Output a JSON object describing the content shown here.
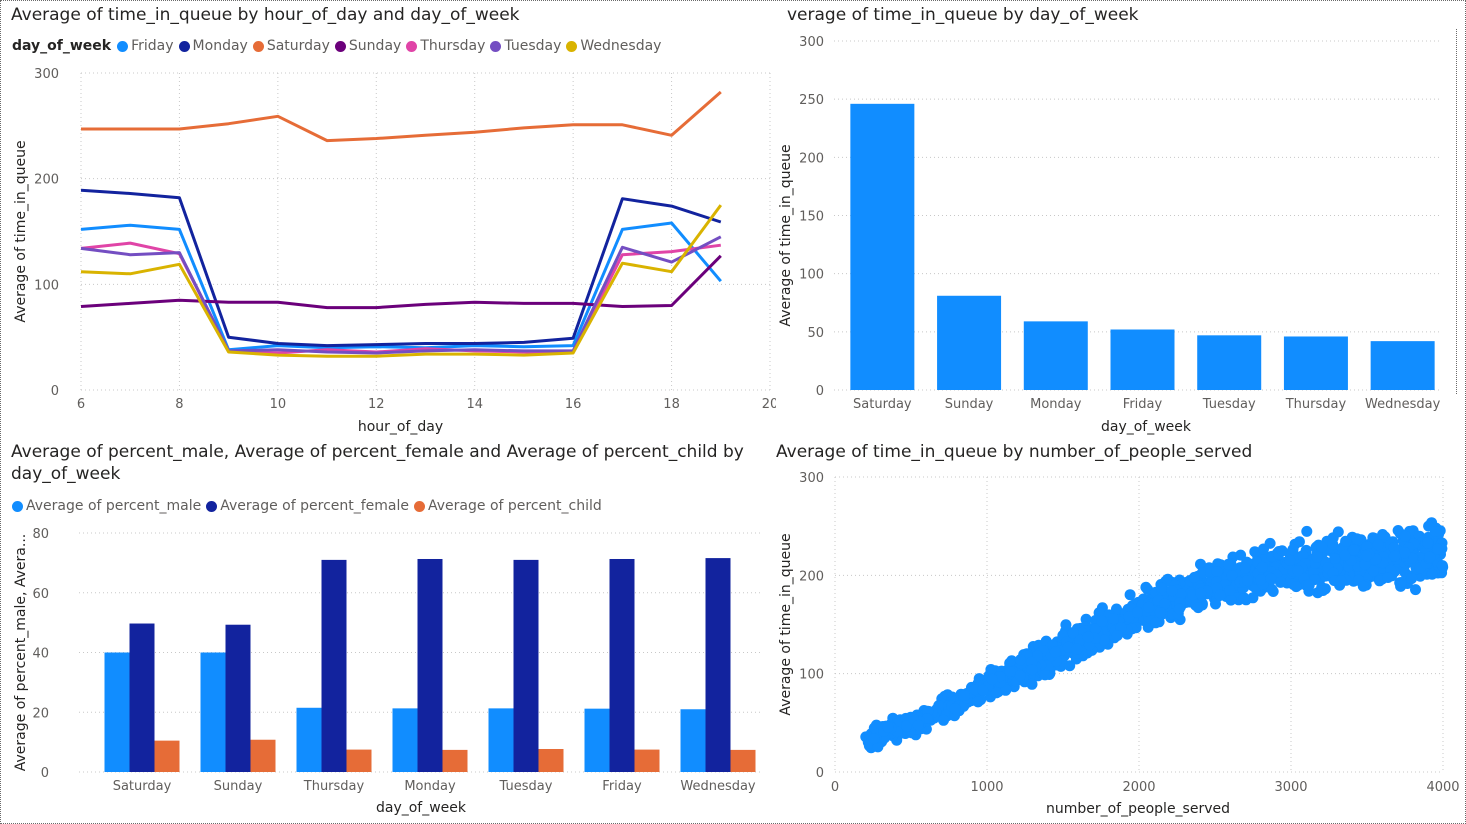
{
  "chart_data": [
    {
      "type": "line",
      "title": "Average of time_in_queue by hour_of_day and day_of_week",
      "xlabel": "hour_of_day",
      "ylabel": "Average of time_in_queue",
      "legend_title": "day_of_week",
      "legend_position": "top-left",
      "xlim": [
        6,
        20
      ],
      "ylim": [
        0,
        300
      ],
      "xticks": [
        6,
        8,
        10,
        12,
        14,
        16,
        18,
        20
      ],
      "yticks": [
        0,
        100,
        200,
        300
      ],
      "grid": true,
      "x": [
        6,
        7,
        8,
        9,
        10,
        11,
        12,
        13,
        14,
        15,
        16,
        17,
        18,
        19
      ],
      "series": [
        {
          "name": "Friday",
          "color": "#118DFF",
          "values": [
            152,
            156,
            152,
            38,
            42,
            40,
            41,
            40,
            42,
            41,
            42,
            152,
            158,
            103
          ]
        },
        {
          "name": "Monday",
          "color": "#12239E",
          "values": [
            189,
            186,
            182,
            50,
            44,
            42,
            43,
            44,
            44,
            45,
            49,
            181,
            174,
            159
          ]
        },
        {
          "name": "Saturday",
          "color": "#E66C37",
          "values": [
            247,
            247,
            247,
            252,
            259,
            236,
            238,
            241,
            244,
            248,
            251,
            251,
            241,
            282
          ]
        },
        {
          "name": "Sunday",
          "color": "#6B007B",
          "values": [
            79,
            82,
            85,
            83,
            83,
            78,
            78,
            81,
            83,
            82,
            82,
            79,
            80,
            127
          ]
        },
        {
          "name": "Thursday",
          "color": "#E044A7",
          "values": [
            134,
            139,
            129,
            37,
            35,
            38,
            36,
            39,
            37,
            36,
            36,
            128,
            131,
            137
          ]
        },
        {
          "name": "Tuesday",
          "color": "#744EC2",
          "values": [
            134,
            128,
            130,
            37,
            38,
            36,
            35,
            37,
            38,
            37,
            37,
            135,
            121,
            145
          ]
        },
        {
          "name": "Wednesday",
          "color": "#D9B300",
          "values": [
            112,
            110,
            119,
            36,
            33,
            32,
            32,
            34,
            34,
            33,
            35,
            120,
            112,
            175
          ]
        }
      ]
    },
    {
      "type": "bar",
      "title": "verage of time_in_queue by day_of_week",
      "xlabel": "day_of_week",
      "ylabel": "Average of time_in_queue",
      "ylim": [
        0,
        300
      ],
      "yticks": [
        0,
        50,
        100,
        150,
        200,
        250,
        300
      ],
      "grid": true,
      "color": "#118DFF",
      "categories": [
        "Saturday",
        "Sunday",
        "Monday",
        "Friday",
        "Tuesday",
        "Thursday",
        "Wednesday"
      ],
      "values": [
        246,
        81,
        59,
        52,
        47,
        46,
        42
      ]
    },
    {
      "type": "bar",
      "title": "Average of percent_male, Average of percent_female and Average of percent_child by day_of_week",
      "xlabel": "day_of_week",
      "ylabel": "Average of percent_male, Avera...",
      "legend_position": "top-left",
      "ylim": [
        0,
        80
      ],
      "yticks": [
        0,
        20,
        40,
        60,
        80
      ],
      "grid": true,
      "categories": [
        "Saturday",
        "Sunday",
        "Thursday",
        "Monday",
        "Tuesday",
        "Friday",
        "Wednesday"
      ],
      "series": [
        {
          "name": "Average of percent_male",
          "color": "#118DFF",
          "values": [
            40,
            40,
            21.5,
            21.3,
            21.3,
            21.2,
            21
          ]
        },
        {
          "name": "Average of percent_female",
          "color": "#12239E",
          "values": [
            49.7,
            49.3,
            71,
            71.3,
            71,
            71.3,
            71.6
          ]
        },
        {
          "name": "Average of percent_child",
          "color": "#E66C37",
          "values": [
            10.5,
            10.8,
            7.5,
            7.4,
            7.7,
            7.5,
            7.4
          ]
        }
      ]
    },
    {
      "type": "scatter",
      "title": "Average of time_in_queue by number_of_people_served",
      "xlabel": "number_of_people_served",
      "ylabel": "Average of time_in_queue",
      "xlim": [
        0,
        4000
      ],
      "ylim": [
        0,
        300
      ],
      "xticks": [
        0,
        1000,
        2000,
        3000,
        4000
      ],
      "yticks": [
        0,
        100,
        200,
        300
      ],
      "grid": true,
      "color": "#118DFF",
      "trend_points": [
        [
          200,
          33
        ],
        [
          500,
          48
        ],
        [
          1000,
          85
        ],
        [
          1500,
          125
        ],
        [
          2000,
          162
        ],
        [
          2500,
          192
        ],
        [
          3000,
          210
        ],
        [
          3500,
          218
        ],
        [
          4000,
          222
        ]
      ],
      "point_count": 1400,
      "x_range": [
        200,
        4000
      ],
      "spread": 12
    }
  ]
}
